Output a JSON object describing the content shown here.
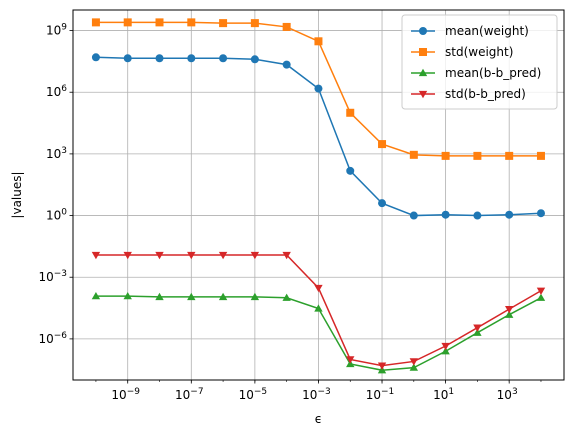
{
  "chart_data": {
    "type": "line",
    "title": "",
    "xlabel": "ϵ",
    "ylabel": "|values|",
    "xscale": "log",
    "yscale": "log",
    "xlim": [
      1.9e-11,
      53000.0
    ],
    "ylim": [
      1e-08,
      10000000000.0
    ],
    "x_ticks": [
      {
        "base": "10",
        "exp": "−9",
        "value": 1e-09
      },
      {
        "base": "10",
        "exp": "−7",
        "value": 1e-07
      },
      {
        "base": "10",
        "exp": "−5",
        "value": 1e-05
      },
      {
        "base": "10",
        "exp": "−3",
        "value": 0.001
      },
      {
        "base": "10",
        "exp": "−1",
        "value": 0.1
      },
      {
        "base": "10",
        "exp": "1",
        "value": 10
      },
      {
        "base": "10",
        "exp": "3",
        "value": 1000
      }
    ],
    "y_ticks": [
      {
        "base": "10",
        "exp": "−6",
        "value": 1e-06
      },
      {
        "base": "10",
        "exp": "−3",
        "value": 0.001
      },
      {
        "base": "10",
        "exp": "0",
        "value": 1
      },
      {
        "base": "10",
        "exp": "3",
        "value": 1000
      },
      {
        "base": "10",
        "exp": "6",
        "value": 1000000.0
      },
      {
        "base": "10",
        "exp": "9",
        "value": 1000000000.0
      }
    ],
    "grid": true,
    "legend_position": "top-right",
    "x": [
      1e-10,
      1e-09,
      1e-08,
      1e-07,
      1e-06,
      1e-05,
      0.0001,
      0.001,
      0.01,
      0.1,
      1,
      10,
      100,
      1000,
      10000
    ],
    "series": [
      {
        "name": "mean(weight)",
        "color": "#1f77b4",
        "marker": "circle",
        "values": [
          50000000.0,
          45000000.0,
          45000000.0,
          45000000.0,
          45000000.0,
          40000000.0,
          22000000.0,
          1500000.0,
          150,
          4,
          1,
          1.1,
          1,
          1.1,
          1.3
        ]
      },
      {
        "name": "std(weight)",
        "color": "#ff7f0e",
        "marker": "square",
        "values": [
          2500000000.0,
          2500000000.0,
          2500000000.0,
          2500000000.0,
          2300000000.0,
          2300000000.0,
          1500000000.0,
          300000000.0,
          100000.0,
          3000.0,
          900,
          800,
          800,
          800,
          800
        ]
      },
      {
        "name": "mean(b-b_pred)",
        "color": "#2ca02c",
        "marker": "triangle-up",
        "values": [
          0.00012,
          0.00012,
          0.00011,
          0.00011,
          0.00011,
          0.00011,
          0.0001,
          3e-05,
          6e-08,
          3e-08,
          4e-08,
          2.5e-07,
          2e-06,
          1.5e-05,
          0.0001
        ]
      },
      {
        "name": "std(b-b_pred)",
        "color": "#d62728",
        "marker": "triangle-down",
        "values": [
          0.012,
          0.012,
          0.012,
          0.012,
          0.012,
          0.012,
          0.012,
          0.0003,
          1e-07,
          5e-08,
          8e-08,
          4.5e-07,
          3.5e-06,
          2.8e-05,
          0.00022
        ]
      }
    ]
  }
}
